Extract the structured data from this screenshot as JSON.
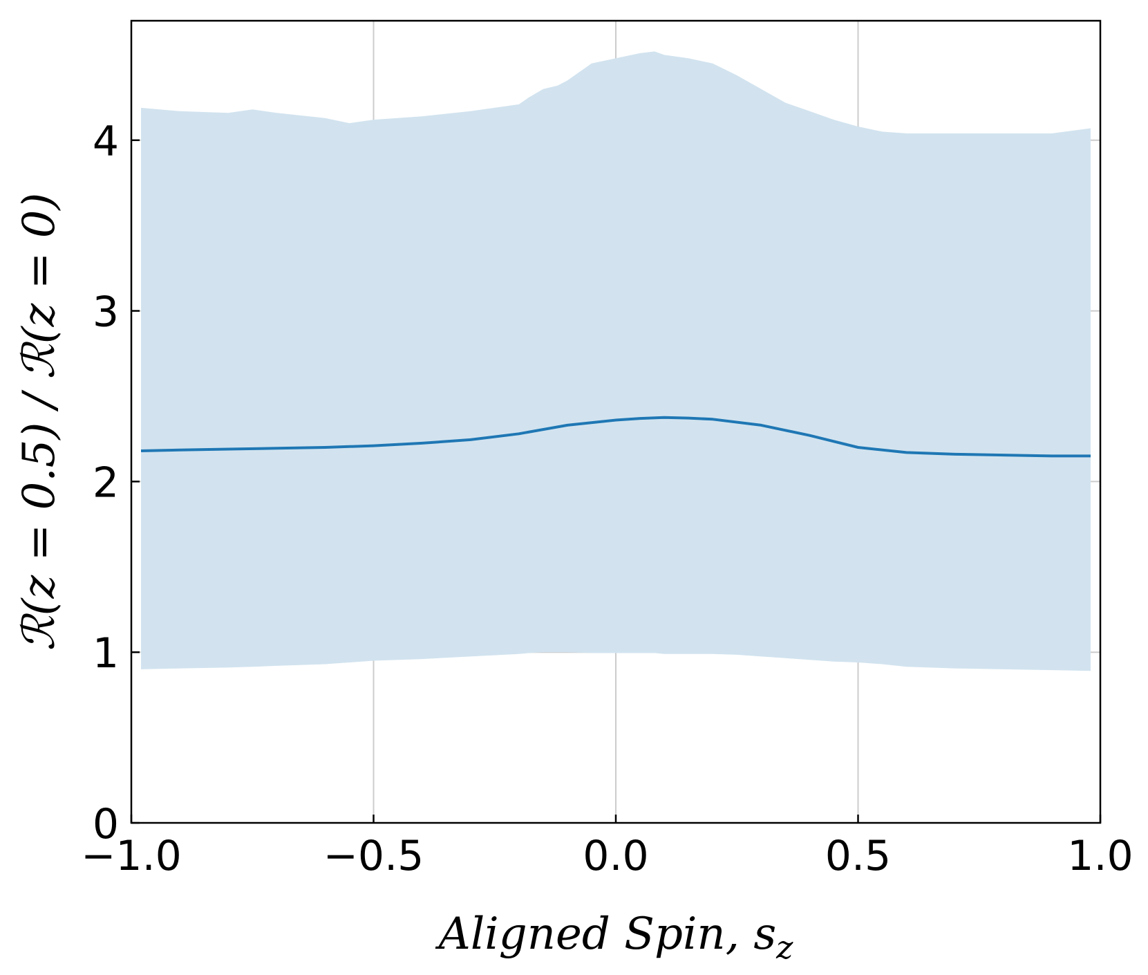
{
  "chart_data": {
    "type": "area",
    "title": "",
    "xlabel": "Aligned Spin, s",
    "xlabel_subscript": "z",
    "ylabel": "ℛ(z = 0.5) / ℛ(z = 0)",
    "xlim": [
      -1.0,
      1.0
    ],
    "ylim": [
      0,
      4.7
    ],
    "xticks": [
      -1.0,
      -0.5,
      0.0,
      0.5,
      1.0
    ],
    "xtick_labels": [
      "−1.0",
      "−0.5",
      "0.0",
      "0.5",
      "1.0"
    ],
    "yticks": [
      0,
      1,
      2,
      3,
      4
    ],
    "ytick_labels": [
      "0",
      "1",
      "2",
      "3",
      "4"
    ],
    "grid": true,
    "legend": "none",
    "colors": {
      "line": "#1f77b4",
      "band": "#d2e3ef",
      "grid": "#cccccc",
      "axes": "#000000"
    },
    "series": [
      {
        "x": [
          -0.98,
          -0.9,
          -0.8,
          -0.7,
          -0.6,
          -0.5,
          -0.4,
          -0.3,
          -0.2,
          -0.1,
          0.0,
          0.05,
          0.1,
          0.15,
          0.2,
          0.3,
          0.4,
          0.5,
          0.6,
          0.7,
          0.8,
          0.9,
          0.98
        ],
        "values": [
          2.18,
          2.185,
          2.19,
          2.195,
          2.2,
          2.21,
          2.225,
          2.245,
          2.28,
          2.33,
          2.36,
          2.37,
          2.375,
          2.372,
          2.365,
          2.33,
          2.27,
          2.2,
          2.17,
          2.16,
          2.155,
          2.15,
          2.15
        ]
      }
    ],
    "band": {
      "x": [
        -0.98,
        -0.9,
        -0.8,
        -0.75,
        -0.7,
        -0.6,
        -0.55,
        -0.5,
        -0.4,
        -0.3,
        -0.2,
        -0.18,
        -0.15,
        -0.12,
        -0.1,
        -0.05,
        0.0,
        0.05,
        0.08,
        0.1,
        0.15,
        0.2,
        0.25,
        0.3,
        0.35,
        0.4,
        0.45,
        0.5,
        0.55,
        0.6,
        0.7,
        0.8,
        0.9,
        0.98
      ],
      "upper": [
        4.19,
        4.17,
        4.16,
        4.18,
        4.16,
        4.13,
        4.1,
        4.12,
        4.14,
        4.17,
        4.21,
        4.25,
        4.3,
        4.32,
        4.35,
        4.45,
        4.48,
        4.51,
        4.52,
        4.5,
        4.48,
        4.45,
        4.38,
        4.3,
        4.22,
        4.17,
        4.12,
        4.08,
        4.05,
        4.04,
        4.04,
        4.04,
        4.04,
        4.07
      ],
      "lower": [
        0.9,
        0.905,
        0.91,
        0.915,
        0.92,
        0.93,
        0.94,
        0.95,
        0.96,
        0.975,
        0.99,
        0.995,
        1.0,
        1.0,
        1.0,
        0.995,
        0.995,
        0.995,
        0.995,
        0.99,
        0.99,
        0.99,
        0.985,
        0.975,
        0.965,
        0.955,
        0.945,
        0.94,
        0.93,
        0.915,
        0.905,
        0.9,
        0.895,
        0.89
      ]
    }
  }
}
